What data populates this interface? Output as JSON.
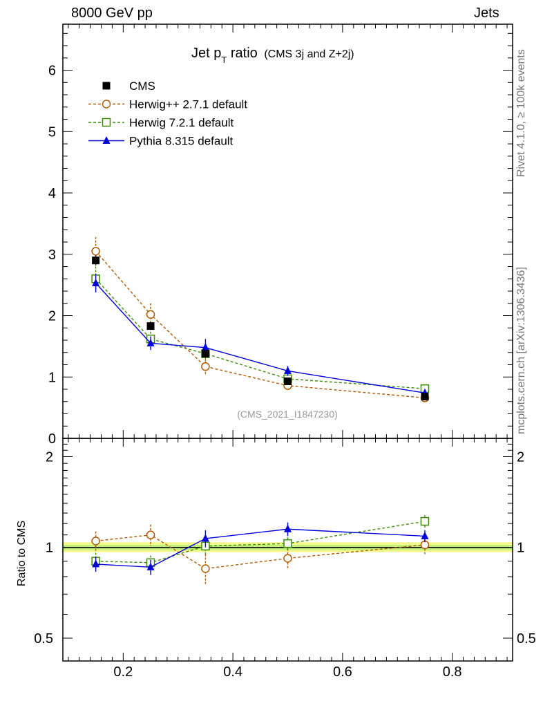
{
  "header": {
    "left": "8000 GeV pp",
    "right": "Jets"
  },
  "side_labels": {
    "rivet": "Rivet 4.1.0, ≥ 100k events",
    "mcplots": "mcplots.cern.ch [arXiv:1306.3436]"
  },
  "chart_data": {
    "type": "line",
    "title_main": "Jet p",
    "title_sub": "T",
    "title_rest": " ratio",
    "title_paren": "(CMS 3j and Z+2j)",
    "watermark": "(CMS_2021_I1847230)",
    "x": [
      0.15,
      0.25,
      0.35,
      0.5,
      0.75
    ],
    "xlim": [
      0.09,
      0.91
    ],
    "x_ticks": [
      0.2,
      0.4,
      0.6,
      0.8
    ],
    "x_tick_labels": [
      "0.2",
      "0.4",
      "0.6",
      "0.8"
    ],
    "top_panel": {
      "ylim": [
        0,
        6.75
      ],
      "y_ticks": [
        0,
        1,
        2,
        3,
        4,
        5,
        6
      ],
      "y_tick_labels": [
        "0",
        "1",
        "2",
        "3",
        "4",
        "5",
        "6"
      ]
    },
    "ratio_panel": {
      "ylabel": "Ratio to CMS",
      "ylim": [
        0.42,
        2.3
      ],
      "log": true,
      "y_ticks": [
        0.5,
        1,
        2
      ],
      "y_tick_labels": [
        "0.5",
        "1",
        "2"
      ]
    },
    "series": [
      {
        "name": "CMS",
        "color": "#000000",
        "marker": "square-filled",
        "dash": "none",
        "values": [
          2.9,
          1.83,
          1.38,
          0.93,
          0.68
        ],
        "errors": [
          0.08,
          0.06,
          0.05,
          0.04,
          0.03
        ],
        "ratio": [
          1.0,
          1.0,
          1.0,
          1.0,
          1.0
        ]
      },
      {
        "name": "Herwig++ 2.7.1 default",
        "color": "#b35900",
        "marker": "circle-open",
        "dash": "dashed",
        "values": [
          3.05,
          2.02,
          1.17,
          0.86,
          0.66
        ],
        "errors": [
          0.23,
          0.18,
          0.14,
          0.08,
          0.05
        ],
        "ratio": [
          1.05,
          1.1,
          0.85,
          0.92,
          1.02
        ],
        "ratio_errors": [
          0.08,
          0.09,
          0.1,
          0.07,
          0.08
        ]
      },
      {
        "name": "Herwig 7.2.1 default",
        "color": "#3a8c00",
        "marker": "square-open",
        "dash": "dashed",
        "values": [
          2.6,
          1.62,
          1.38,
          0.97,
          0.81
        ],
        "errors": [
          0.2,
          0.12,
          0.12,
          0.07,
          0.06
        ],
        "ratio": [
          0.9,
          0.89,
          1.01,
          1.03,
          1.22
        ],
        "ratio_errors": [
          0.06,
          0.05,
          0.06,
          0.05,
          0.06
        ]
      },
      {
        "name": "Pythia 8.315 default",
        "color": "#0000dd",
        "marker": "triangle-filled",
        "dash": "none",
        "values": [
          2.53,
          1.55,
          1.48,
          1.1,
          0.74
        ],
        "errors": [
          0.15,
          0.11,
          0.14,
          0.08,
          0.06
        ],
        "ratio": [
          0.88,
          0.86,
          1.07,
          1.15,
          1.09
        ],
        "ratio_errors": [
          0.05,
          0.05,
          0.07,
          0.06,
          0.05
        ]
      }
    ]
  }
}
